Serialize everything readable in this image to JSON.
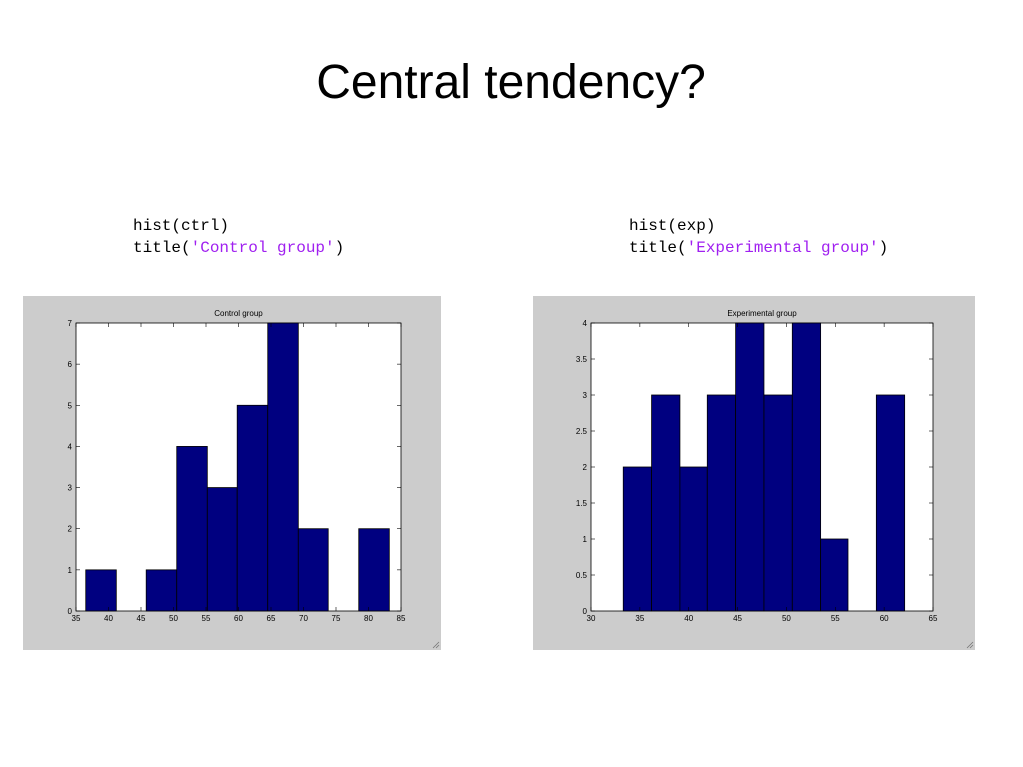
{
  "title": "Central tendency?",
  "code": [
    {
      "call": "hist(ctrl)",
      "prefix": "title(",
      "string": "'Control group'",
      "suffix": ")"
    },
    {
      "call": "hist(exp)",
      "prefix": "title(",
      "string": "'Experimental group'",
      "suffix": ")"
    }
  ],
  "chart_data": [
    {
      "type": "histogram",
      "title": "Control group",
      "bins": [
        36.5,
        41.2,
        45.8,
        50.5,
        55.2,
        59.8,
        64.5,
        69.2,
        73.8,
        78.5,
        83.2
      ],
      "values": [
        1,
        0,
        1,
        4,
        3,
        5,
        7,
        2,
        0,
        2
      ],
      "color": "#000080",
      "xlim": [
        35,
        85
      ],
      "xticks": [
        35,
        40,
        45,
        50,
        55,
        60,
        65,
        70,
        75,
        80,
        85
      ],
      "ylim": [
        0,
        7
      ],
      "yticks": [
        0,
        1,
        2,
        3,
        4,
        5,
        6,
        7
      ]
    },
    {
      "type": "histogram",
      "title": "Experimental group",
      "bins": [
        33.3,
        36.2,
        39.1,
        41.9,
        44.8,
        47.7,
        50.6,
        53.5,
        56.3,
        59.2,
        62.1
      ],
      "values": [
        2,
        3,
        2,
        3,
        4,
        3,
        4,
        1,
        0,
        3
      ],
      "color": "#000080",
      "xlim": [
        30,
        65
      ],
      "xticks": [
        30,
        35,
        40,
        45,
        50,
        55,
        60,
        65
      ],
      "ylim": [
        0,
        4
      ],
      "yticks": [
        0,
        0.5,
        1,
        1.5,
        2,
        2.5,
        3,
        3.5,
        4
      ]
    }
  ]
}
